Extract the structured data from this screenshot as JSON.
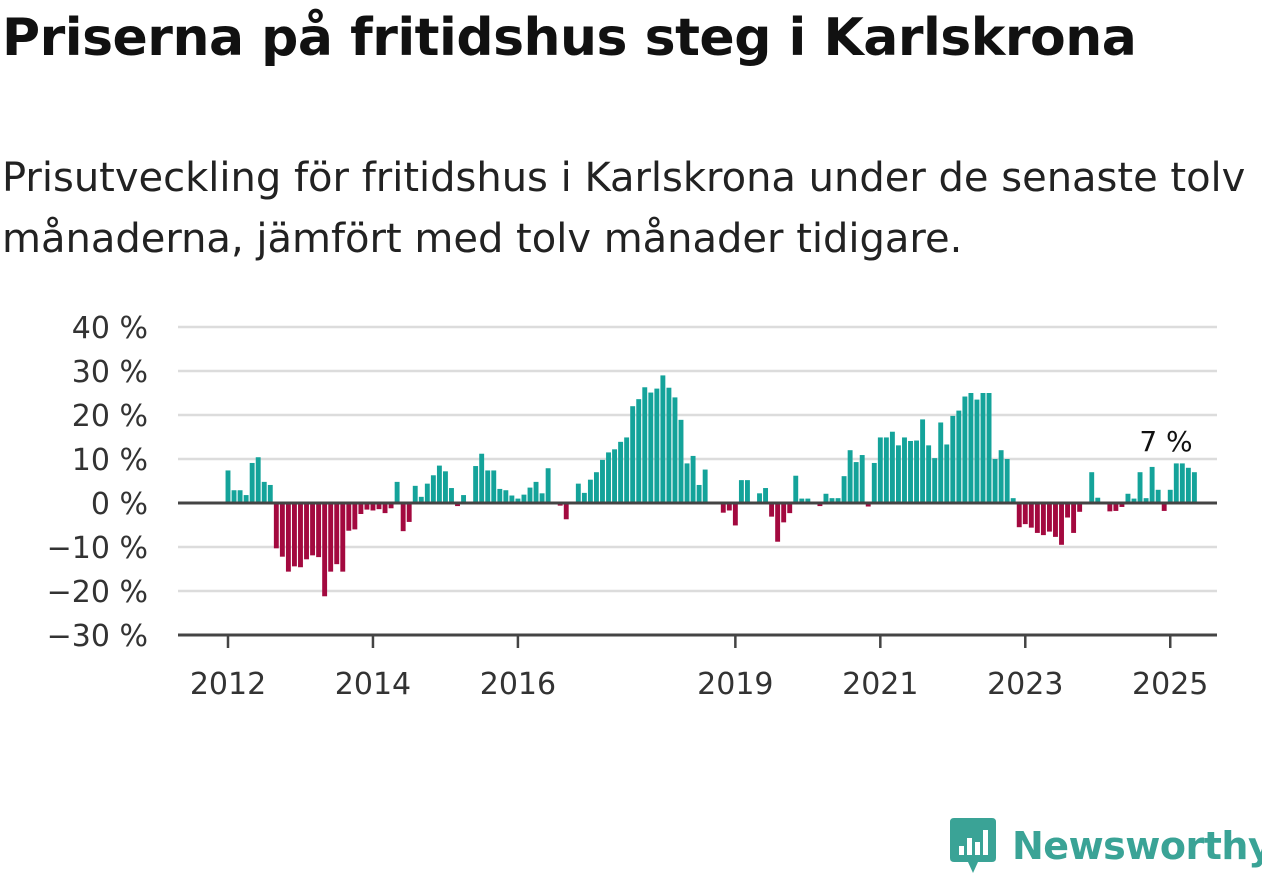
{
  "title": "Priserna på fritidshus steg i Karlskrona",
  "subtitle": "Prisutveckling för fritidshus i Karlskrona under de senaste tolv månaderna, jämfört med tolv månader tidigare.",
  "brand": "Newsworthy",
  "colors": {
    "positive": "#14a39a",
    "negative": "#a3093f",
    "grid": "#dcdcdc",
    "zero_line": "#444444",
    "brand": "#3aa396"
  },
  "chart_data": {
    "type": "bar",
    "ylim": [
      -30,
      40
    ],
    "y_ticks": [
      40,
      30,
      20,
      10,
      0,
      -10,
      -20,
      -30
    ],
    "y_tick_labels": [
      "40 %",
      "30 %",
      "20 %",
      "10 %",
      "0 %",
      "−10 %",
      "−20 %",
      "−30 %"
    ],
    "x_tick_labels": [
      "2012",
      "2014",
      "2016",
      "2019",
      "2021",
      "2023",
      "2025"
    ],
    "x_tick_months": [
      0,
      24,
      48,
      84,
      108,
      132,
      156
    ],
    "start_label": "2012",
    "annotation": "7 %",
    "grid": true,
    "values": [
      7.4,
      2.9,
      2.9,
      1.8,
      9.1,
      10.4,
      4.8,
      4.1,
      -10.3,
      -12.2,
      -15.6,
      -14.4,
      -14.6,
      -12.8,
      -11.9,
      -12.3,
      -21.2,
      -15.6,
      -13.9,
      -15.6,
      -6.3,
      -6.0,
      -2.5,
      -1.5,
      -1.7,
      -1.4,
      -2.3,
      -1.2,
      4.8,
      -6.4,
      -4.3,
      3.9,
      1.4,
      4.4,
      6.3,
      8.5,
      7.2,
      3.4,
      -0.7,
      1.8,
      0.0,
      8.4,
      11.2,
      7.4,
      7.4,
      3.2,
      2.9,
      1.7,
      1.0,
      1.9,
      3.5,
      4.8,
      2.2,
      7.9,
      0.0,
      -0.6,
      -3.7,
      0.0,
      4.4,
      2.3,
      5.3,
      7.0,
      9.8,
      11.5,
      12.2,
      13.9,
      14.9,
      22.0,
      23.6,
      26.3,
      25.1,
      26.0,
      29.0,
      26.2,
      24.0,
      18.9,
      9.0,
      10.7,
      4.1,
      7.6,
      0.0,
      0.0,
      -2.2,
      -1.7,
      -5.1,
      5.2,
      5.2,
      0.0,
      2.2,
      3.4,
      -3.1,
      -8.8,
      -4.4,
      -2.3,
      6.2,
      1.0,
      1.0,
      0.0,
      -0.7,
      2.1,
      1.1,
      1.1,
      6.1,
      12.0,
      9.3,
      10.9,
      -0.8,
      9.1,
      14.9,
      14.9,
      16.2,
      13.1,
      14.9,
      14.1,
      14.2,
      19.0,
      13.1,
      10.2,
      18.3,
      13.3,
      19.8,
      21.0,
      24.2,
      25.0,
      23.5,
      25.0,
      25.0,
      10.0,
      12.0,
      10.0,
      1.1,
      -5.5,
      -4.8,
      -5.6,
      -6.8,
      -7.3,
      -6.5,
      -7.7,
      -9.5,
      -3.3,
      -6.8,
      -2.0,
      0.0,
      7.0,
      1.2,
      0.0,
      -1.9,
      -1.8,
      -0.9,
      2.1,
      1.0,
      7.0,
      1.1,
      8.2,
      3.0,
      -1.8,
      3.0,
      9.0,
      9.0,
      8.0,
      7.0
    ]
  }
}
